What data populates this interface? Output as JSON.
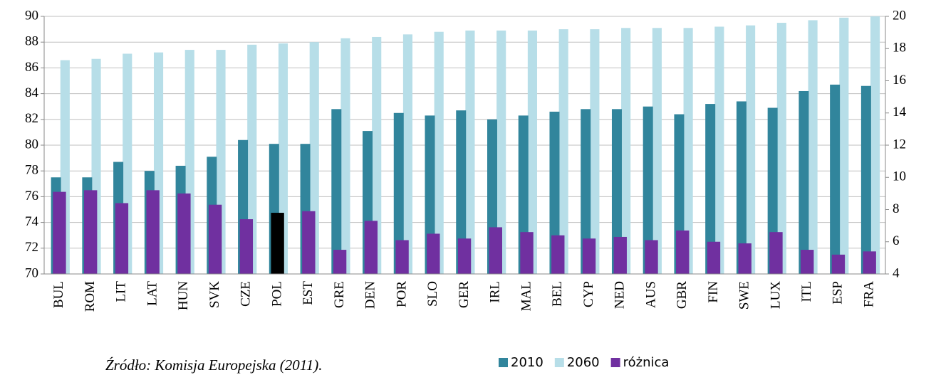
{
  "chart_data": {
    "type": "bar",
    "source": "Źródło: Komisja Europejska (2011).",
    "categories": [
      "BUL",
      "ROM",
      "LIT",
      "LAT",
      "HUN",
      "SVK",
      "CZE",
      "POL",
      "EST",
      "GRE",
      "DEN",
      "POR",
      "SLO",
      "GER",
      "IRL",
      "MAL",
      "BEL",
      "CYP",
      "NED",
      "AUS",
      "GBR",
      "FIN",
      "SWE",
      "LUX",
      "ITL",
      "ESP",
      "FRA"
    ],
    "series": [
      {
        "name": "2010",
        "color": "#31859c",
        "values": [
          77.5,
          77.5,
          78.7,
          78.0,
          78.4,
          79.1,
          80.4,
          80.1,
          80.1,
          82.8,
          81.1,
          82.5,
          82.3,
          82.7,
          82.0,
          82.3,
          82.6,
          82.8,
          82.8,
          83.0,
          82.4,
          83.2,
          83.4,
          82.9,
          84.2,
          84.7,
          84.6
        ]
      },
      {
        "name": "2060",
        "color": "#b7dee8",
        "values": [
          86.6,
          86.7,
          87.1,
          87.2,
          87.4,
          87.4,
          87.8,
          87.9,
          88.0,
          88.3,
          88.4,
          88.6,
          88.8,
          88.9,
          88.9,
          88.9,
          89.0,
          89.0,
          89.1,
          89.1,
          89.1,
          89.2,
          89.3,
          89.5,
          89.7,
          89.9,
          90.0
        ]
      },
      {
        "name": "różnica",
        "color": "#7030a0",
        "axis": "y2",
        "values": [
          9.1,
          9.2,
          8.4,
          9.2,
          9.0,
          8.3,
          7.4,
          7.8,
          7.9,
          5.5,
          7.3,
          6.1,
          6.5,
          6.2,
          6.9,
          6.6,
          6.4,
          6.2,
          6.3,
          6.1,
          6.7,
          6.0,
          5.9,
          6.6,
          5.5,
          5.2,
          5.4
        ],
        "point_colors": {
          "7": "#000000"
        }
      }
    ],
    "ylim": [
      70,
      90
    ],
    "yticks": [
      70,
      72,
      74,
      76,
      78,
      80,
      82,
      84,
      86,
      88,
      90
    ],
    "y2lim": [
      4,
      20
    ],
    "y2ticks": [
      4,
      6,
      8,
      10,
      12,
      14,
      16,
      18,
      20
    ],
    "grid": true
  }
}
